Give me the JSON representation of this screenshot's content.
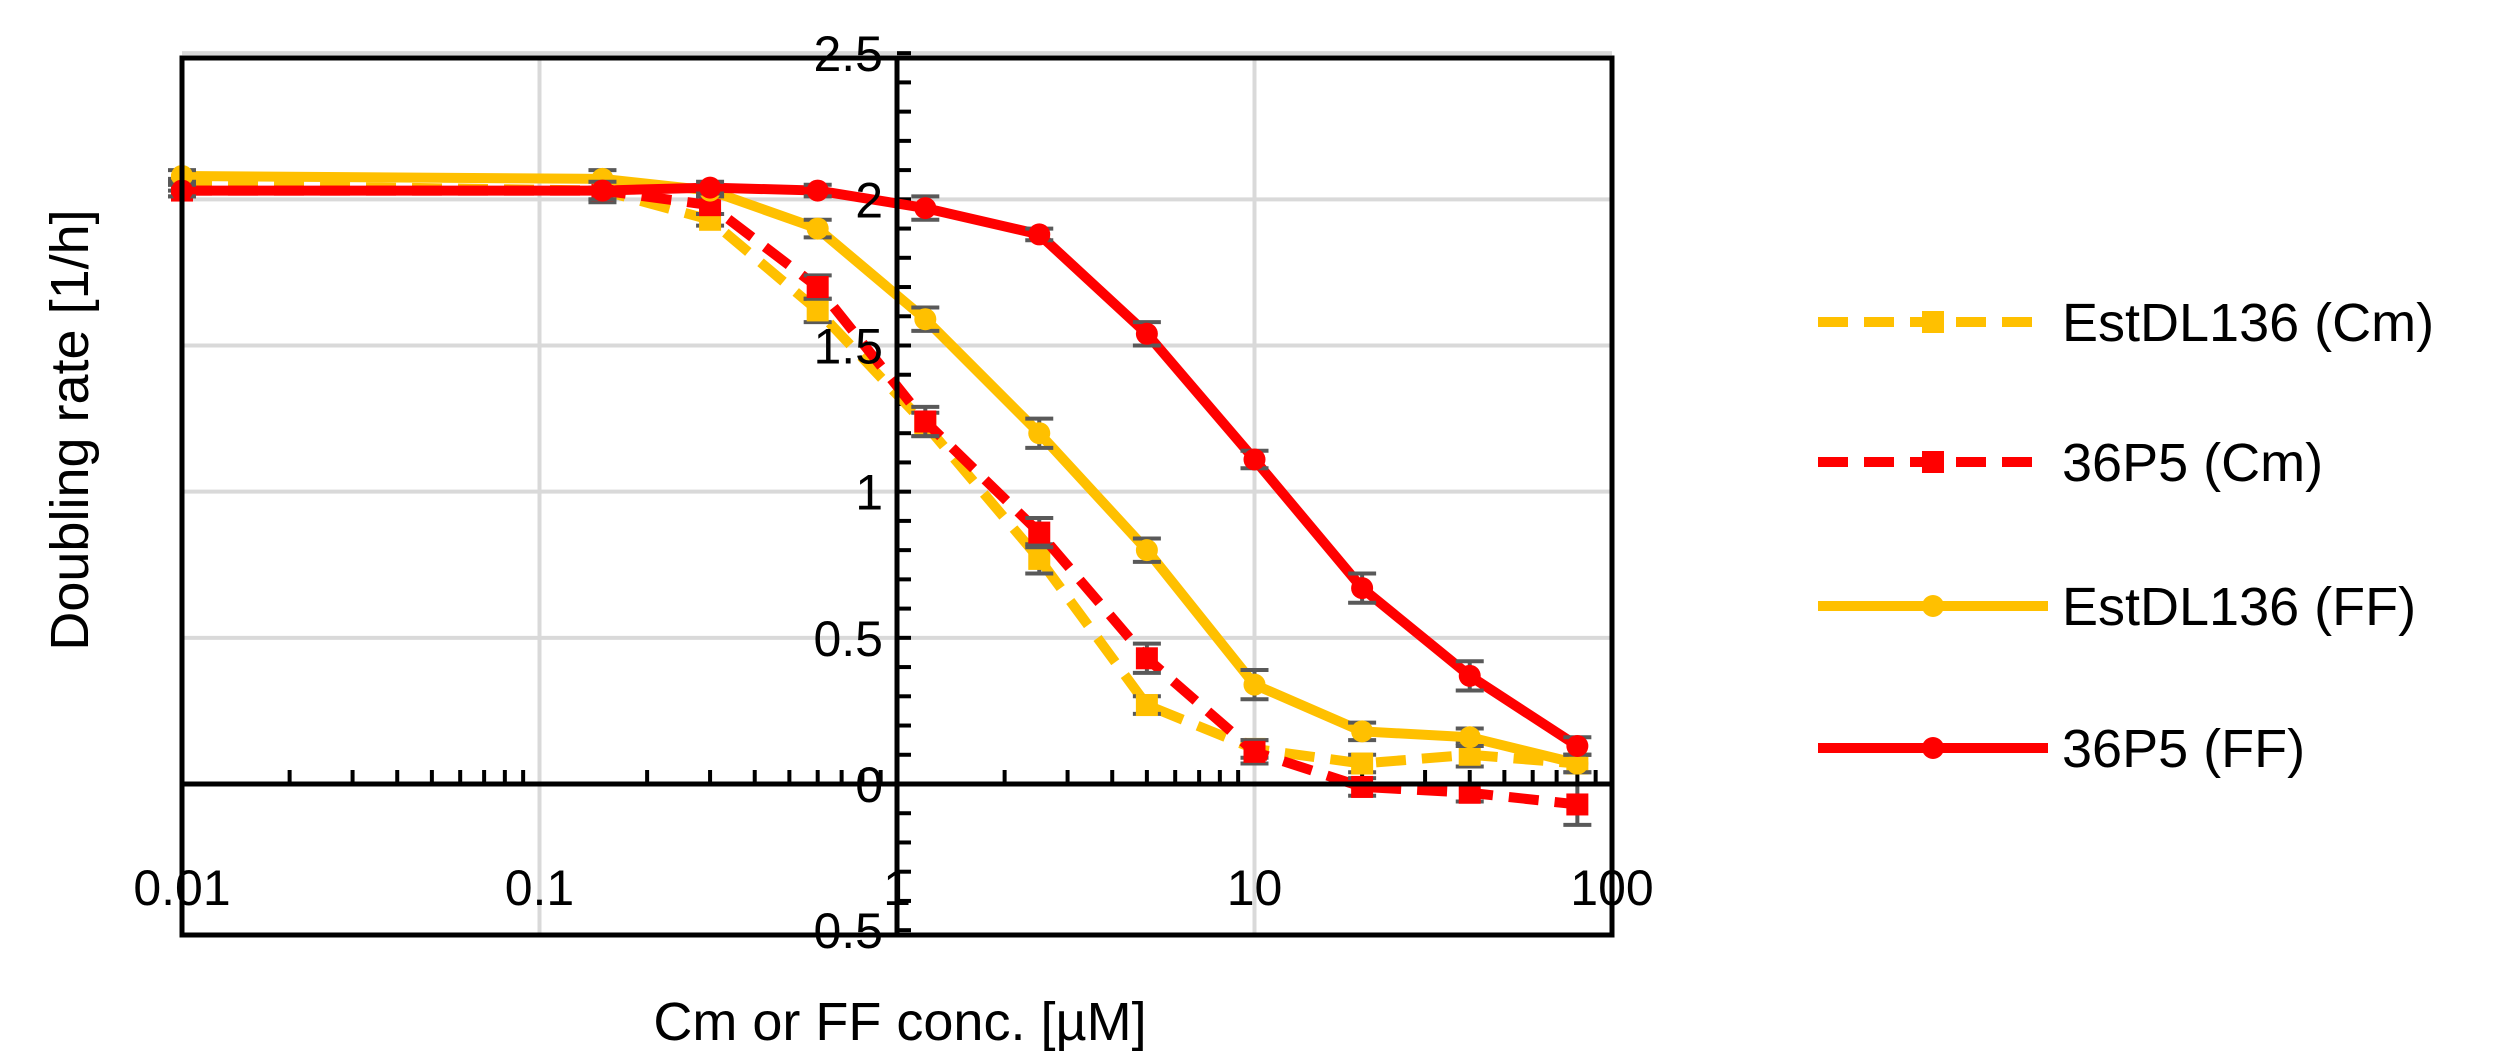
{
  "chart_data": {
    "type": "line",
    "xlabel": "Cm or FF conc. [µM]",
    "ylabel": "Doubling rate [1/h]",
    "x_scale": "log",
    "xlim": [
      0.01,
      100
    ],
    "ylim": [
      -0.5,
      2.5
    ],
    "x_ticks": [
      {
        "value": 0.01,
        "label": "0.01"
      },
      {
        "value": 0.1,
        "label": "0.1"
      },
      {
        "value": 1,
        "label": "1"
      },
      {
        "value": 10,
        "label": "10"
      },
      {
        "value": 100,
        "label": "100"
      }
    ],
    "y_ticks": [
      {
        "value": -0.5,
        "label": "-0.5"
      },
      {
        "value": 0,
        "label": "0"
      },
      {
        "value": 0.5,
        "label": "0.5"
      },
      {
        "value": 1,
        "label": "1"
      },
      {
        "value": 1.5,
        "label": "1.5"
      },
      {
        "value": 2,
        "label": "2"
      },
      {
        "value": 2.5,
        "label": "2.5"
      }
    ],
    "grid": true,
    "legend_position": "right",
    "series": [
      {
        "name": "EstDL136 (Cm)",
        "color": "#FFC000",
        "dash": true,
        "marker": "square",
        "x": [
          0.01,
          0.15,
          0.3,
          0.6,
          1.2,
          2.5,
          5,
          10,
          20,
          40,
          80
        ],
        "y": [
          2.05,
          2.03,
          1.93,
          1.62,
          1.23,
          0.77,
          0.27,
          0.12,
          0.07,
          0.1,
          0.07
        ],
        "err": [
          0.02,
          0.03,
          0.02,
          0.04,
          0.04,
          0.05,
          0.03,
          0.03,
          0.03,
          0.04,
          0.03
        ]
      },
      {
        "name": "36P5 (Cm)",
        "color": "#FF0000",
        "dash": true,
        "marker": "square",
        "x": [
          0.01,
          0.15,
          0.3,
          0.6,
          1.2,
          2.5,
          5,
          10,
          20,
          40,
          80
        ],
        "y": [
          2.03,
          2.03,
          1.98,
          1.7,
          1.24,
          0.86,
          0.43,
          0.11,
          -0.01,
          -0.03,
          -0.07
        ],
        "err": [
          0.02,
          0.04,
          0.03,
          0.04,
          0.05,
          0.05,
          0.05,
          0.04,
          0.03,
          0.03,
          0.07
        ]
      },
      {
        "name": "EstDL136 (FF)",
        "color": "#FFC000",
        "dash": false,
        "marker": "circle",
        "x": [
          0.01,
          0.15,
          0.3,
          0.6,
          1.2,
          2.5,
          5,
          10,
          20,
          40,
          80
        ],
        "y": [
          2.08,
          2.07,
          2.03,
          1.9,
          1.59,
          1.2,
          0.8,
          0.34,
          0.18,
          0.16,
          0.07
        ],
        "err": [
          0.02,
          0.03,
          0.02,
          0.03,
          0.04,
          0.05,
          0.04,
          0.05,
          0.03,
          0.03,
          0.03
        ]
      },
      {
        "name": "36P5 (FF)",
        "color": "#FF0000",
        "dash": false,
        "marker": "circle",
        "x": [
          0.01,
          0.15,
          0.3,
          0.6,
          1.2,
          2.5,
          5,
          10,
          20,
          40,
          80
        ],
        "y": [
          2.03,
          2.03,
          2.04,
          2.03,
          1.97,
          1.88,
          1.54,
          1.11,
          0.67,
          0.37,
          0.13
        ],
        "err": [
          0.02,
          0.03,
          0.02,
          0.02,
          0.04,
          0.02,
          0.04,
          0.03,
          0.05,
          0.05,
          0.03
        ]
      }
    ]
  }
}
